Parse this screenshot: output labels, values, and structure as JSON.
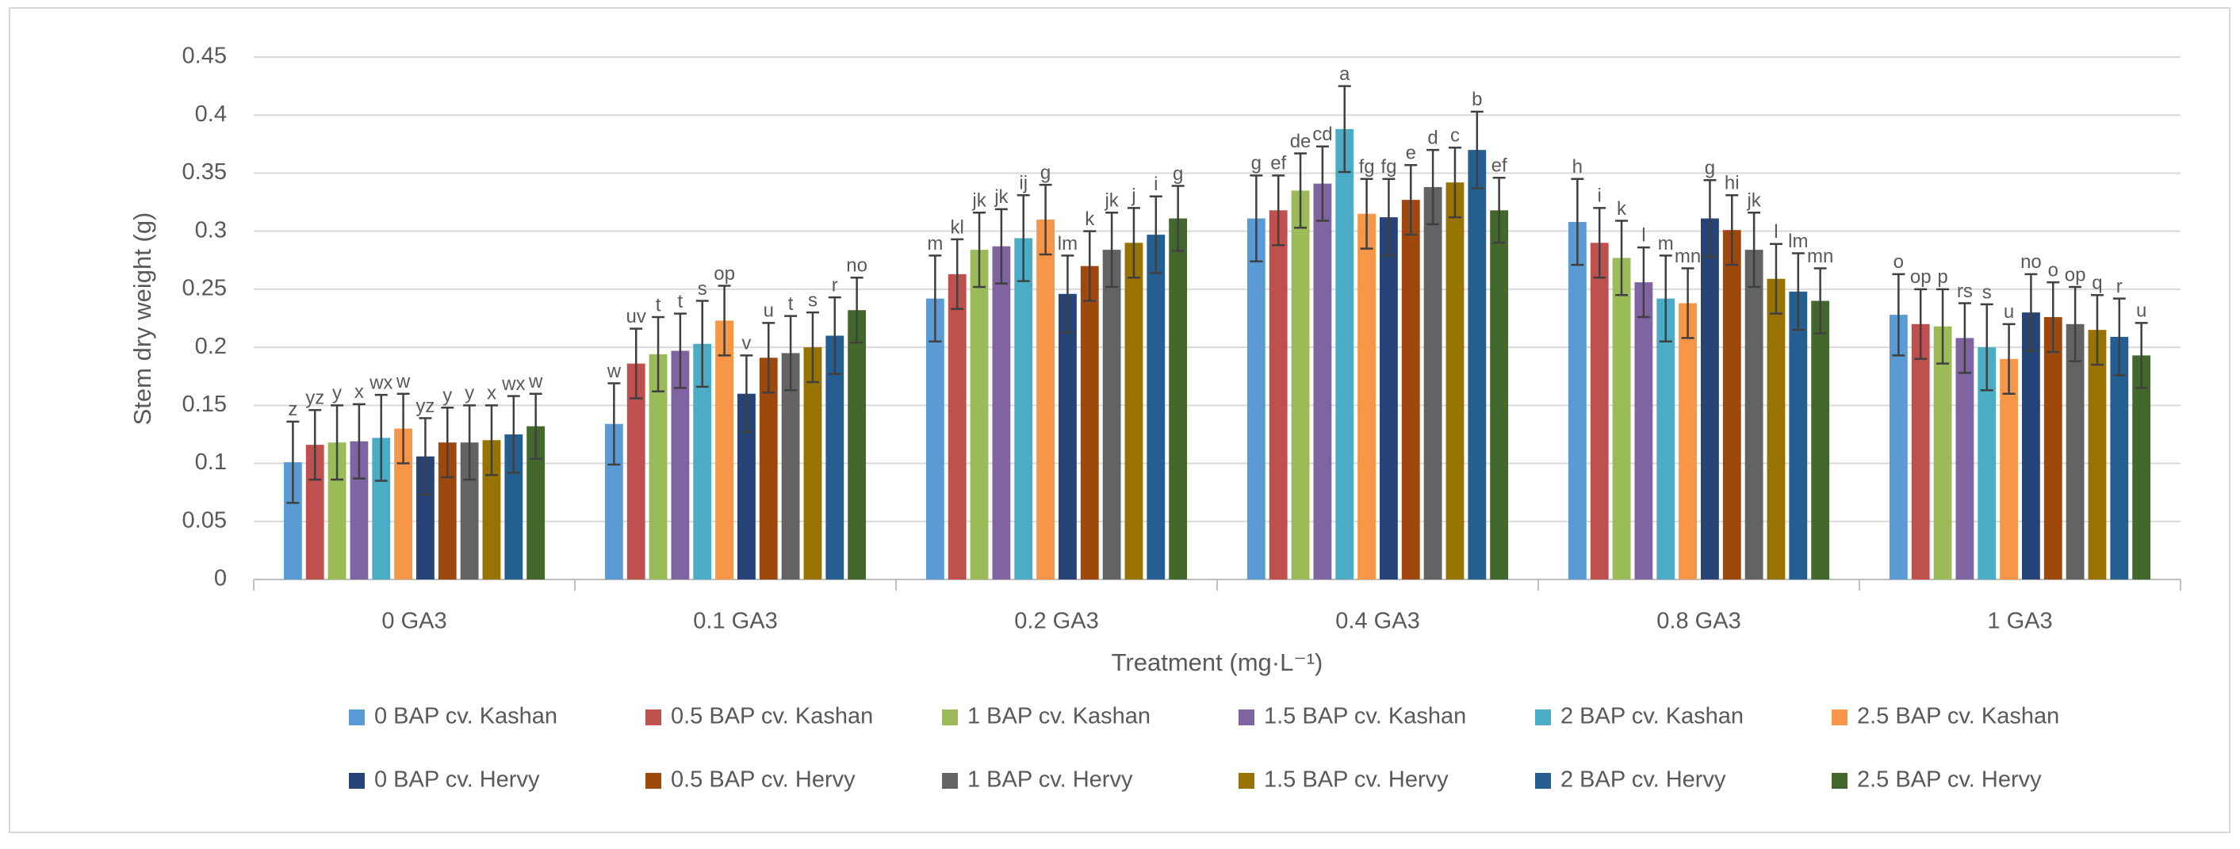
{
  "chart_data": {
    "type": "bar",
    "y_label": "Stem dry weight (g)",
    "x_label": "Treatment (mg·L⁻¹)",
    "categories": [
      "0 GA3",
      "0.1 GA3",
      "0.2 GA3",
      "0.4 GA3",
      "0.8 GA3",
      "1 GA3"
    ],
    "ylim": [
      0,
      0.45
    ],
    "yticks": [
      0,
      0.05,
      0.1,
      0.15,
      0.2,
      0.25,
      0.3,
      0.35,
      0.4,
      0.45
    ],
    "grid": true,
    "legend": "bottom",
    "series": [
      {
        "name": "0 BAP cv. Kashan",
        "color": "#5b9bd5",
        "values": [
          0.101,
          0.134,
          0.242,
          0.311,
          0.308,
          0.228
        ],
        "errors": [
          0.035,
          0.035,
          0.037,
          0.037,
          0.037,
          0.035
        ],
        "letters": [
          "z",
          "w",
          "m",
          "g",
          "h",
          "o"
        ]
      },
      {
        "name": "0.5 BAP cv. Kashan",
        "color": "#c0504d",
        "values": [
          0.116,
          0.186,
          0.263,
          0.318,
          0.29,
          0.22
        ],
        "errors": [
          0.03,
          0.03,
          0.03,
          0.03,
          0.03,
          0.03
        ],
        "letters": [
          "yz",
          "uv",
          "kl",
          "ef",
          "i",
          "op"
        ]
      },
      {
        "name": "1 BAP cv. Kashan",
        "color": "#9bbb59",
        "values": [
          0.118,
          0.194,
          0.284,
          0.335,
          0.277,
          0.218
        ],
        "errors": [
          0.032,
          0.032,
          0.032,
          0.032,
          0.032,
          0.032
        ],
        "letters": [
          "y",
          "t",
          "jk",
          "de",
          "k",
          "p"
        ]
      },
      {
        "name": "1.5 BAP cv. Kashan",
        "color": "#8064a2",
        "values": [
          0.119,
          0.197,
          0.287,
          0.341,
          0.256,
          0.208
        ],
        "errors": [
          0.032,
          0.032,
          0.032,
          0.032,
          0.03,
          0.03
        ],
        "letters": [
          "x",
          "t",
          "jk",
          "cd",
          "l",
          "rs"
        ]
      },
      {
        "name": "2 BAP cv. Kashan",
        "color": "#4bacc6",
        "values": [
          0.122,
          0.203,
          0.294,
          0.388,
          0.242,
          0.2
        ],
        "errors": [
          0.037,
          0.037,
          0.037,
          0.037,
          0.037,
          0.037
        ],
        "letters": [
          "wx",
          "s",
          "ij",
          "a",
          "m",
          "s"
        ]
      },
      {
        "name": "2.5 BAP cv. Kashan",
        "color": "#f79646",
        "values": [
          0.13,
          0.223,
          0.31,
          0.315,
          0.238,
          0.19
        ],
        "errors": [
          0.03,
          0.03,
          0.03,
          0.03,
          0.03,
          0.03
        ],
        "letters": [
          "w",
          "op",
          "g",
          "fg",
          "mn",
          "u"
        ]
      },
      {
        "name": "0 BAP cv. Hervy",
        "color": "#264478",
        "values": [
          0.106,
          0.16,
          0.246,
          0.312,
          0.311,
          0.23
        ],
        "errors": [
          0.033,
          0.033,
          0.033,
          0.033,
          0.033,
          0.033
        ],
        "letters": [
          "yz",
          "v",
          "lm",
          "fg",
          "g",
          "no"
        ]
      },
      {
        "name": "0.5 BAP cv. Hervy",
        "color": "#9e480e",
        "values": [
          0.118,
          0.191,
          0.27,
          0.327,
          0.301,
          0.226
        ],
        "errors": [
          0.03,
          0.03,
          0.03,
          0.03,
          0.03,
          0.03
        ],
        "letters": [
          "y",
          "u",
          "k",
          "e",
          "hi",
          "o"
        ]
      },
      {
        "name": "1 BAP cv. Hervy",
        "color": "#636363",
        "values": [
          0.118,
          0.195,
          0.284,
          0.338,
          0.284,
          0.22
        ],
        "errors": [
          0.032,
          0.032,
          0.032,
          0.032,
          0.032,
          0.032
        ],
        "letters": [
          "y",
          "t",
          "jk",
          "d",
          "jk",
          "op"
        ]
      },
      {
        "name": "1.5 BAP cv. Hervy",
        "color": "#997300",
        "values": [
          0.12,
          0.2,
          0.29,
          0.342,
          0.259,
          0.215
        ],
        "errors": [
          0.03,
          0.03,
          0.03,
          0.03,
          0.03,
          0.03
        ],
        "letters": [
          "x",
          "s",
          "j",
          "c",
          "l",
          "q"
        ]
      },
      {
        "name": "2 BAP cv. Hervy",
        "color": "#255e91",
        "values": [
          0.125,
          0.21,
          0.297,
          0.37,
          0.248,
          0.209
        ],
        "errors": [
          0.033,
          0.033,
          0.033,
          0.033,
          0.033,
          0.033
        ],
        "letters": [
          "wx",
          "r",
          "i",
          "b",
          "lm",
          "r"
        ]
      },
      {
        "name": "2.5 BAP cv. Hervy",
        "color": "#43682b",
        "values": [
          0.132,
          0.232,
          0.311,
          0.318,
          0.24,
          0.193
        ],
        "errors": [
          0.028,
          0.028,
          0.028,
          0.028,
          0.028,
          0.028
        ],
        "letters": [
          "w",
          "no",
          "g",
          "ef",
          "mn",
          "u"
        ]
      }
    ]
  }
}
